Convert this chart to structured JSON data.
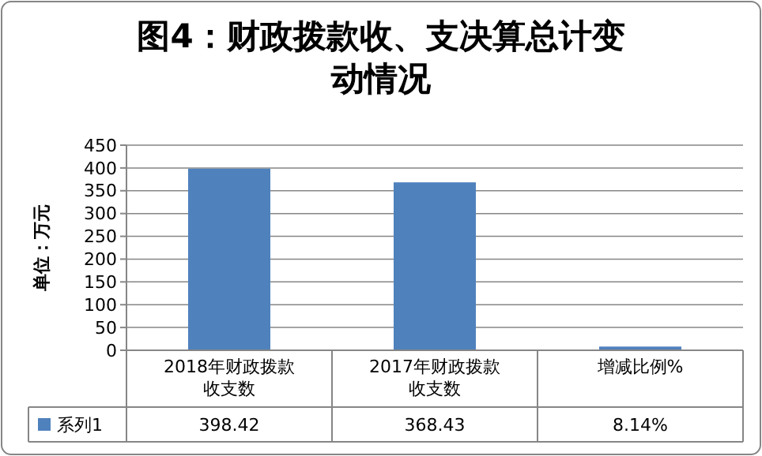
{
  "chart_data": {
    "type": "bar",
    "title": "图4：财政拨款收、支决算总计变动情况",
    "ylabel": "单位：万元",
    "categories": [
      "2018年财政拨款收支数",
      "2017年财政拨款收支数",
      "增减比例%"
    ],
    "series": [
      {
        "name": "系列1",
        "color": "#4f81bd",
        "values": [
          398.42,
          368.43,
          8.14
        ],
        "value_labels": [
          "398.42",
          "368.43",
          "8.14%"
        ]
      }
    ],
    "ylim": [
      0,
      450
    ],
    "yticks": [
      0,
      50,
      100,
      150,
      200,
      250,
      300,
      350,
      400,
      450
    ],
    "grid": "y",
    "legend": "bottom left"
  }
}
